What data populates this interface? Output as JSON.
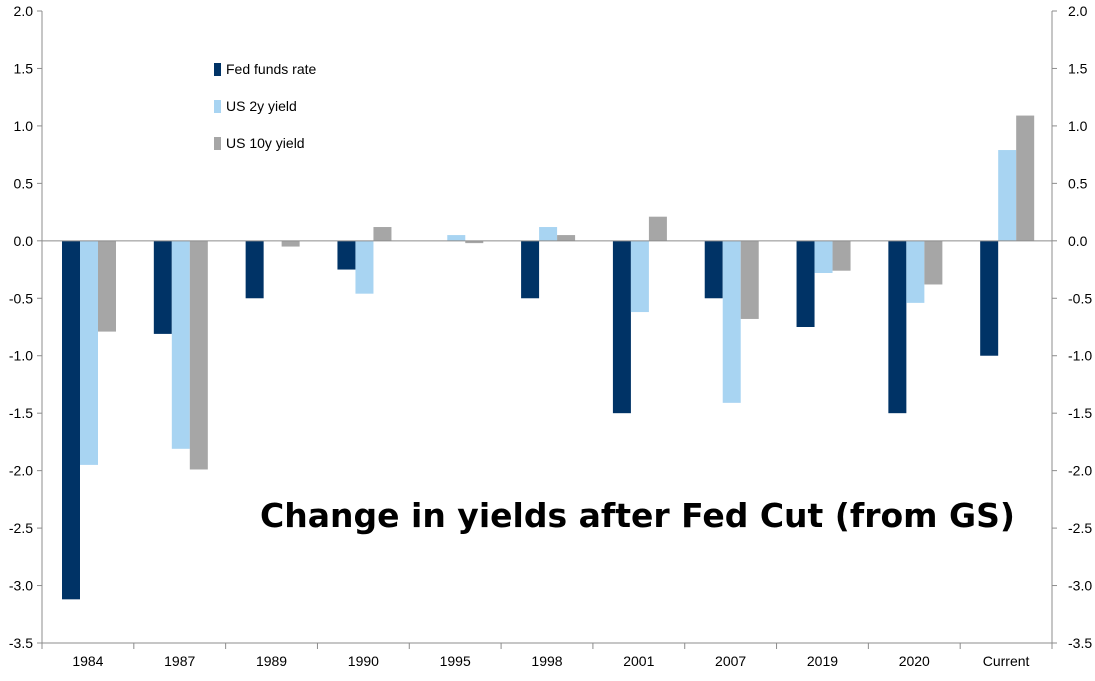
{
  "chart_data": {
    "type": "bar",
    "title": "Change in yields after Fed Cut (from GS)",
    "xlabel": "",
    "ylabel": "",
    "ylim": [
      -3.5,
      2.0
    ],
    "yticks": [
      "2.0",
      "1.5",
      "1.0",
      "0.5",
      "0.0",
      "-0.5",
      "-1.0",
      "-1.5",
      "-2.0",
      "-2.5",
      "-3.0",
      "-3.5"
    ],
    "yticks_right": [
      "2.0",
      "1.5",
      "1.0",
      "0.5",
      "0.0",
      "-0.5",
      "-1.0",
      "-1.5",
      "-2.0",
      "-2.5",
      "-3.0",
      "-3.5"
    ],
    "categories": [
      "1984",
      "1987",
      "1989",
      "1990",
      "1995",
      "1998",
      "2001",
      "2007",
      "2019",
      "2020",
      "Current"
    ],
    "series": [
      {
        "name": "Fed funds rate",
        "color": "#003366",
        "values": [
          -3.12,
          -0.81,
          -0.5,
          -0.25,
          0.0,
          -0.5,
          -1.5,
          -0.5,
          -0.75,
          -1.5,
          -1.0
        ]
      },
      {
        "name": "US 2y yield",
        "color": "#a8d4f2",
        "values": [
          -1.95,
          -1.81,
          0.0,
          -0.46,
          0.05,
          0.12,
          -0.62,
          -1.41,
          -0.28,
          -0.54,
          0.79
        ]
      },
      {
        "name": "US 10y yield",
        "color": "#a6a6a6",
        "values": [
          -0.79,
          -1.99,
          -0.05,
          0.12,
          -0.02,
          0.05,
          0.21,
          -0.68,
          -0.26,
          -0.38,
          1.09
        ]
      }
    ],
    "legend_position": "top-left",
    "grid": false
  }
}
